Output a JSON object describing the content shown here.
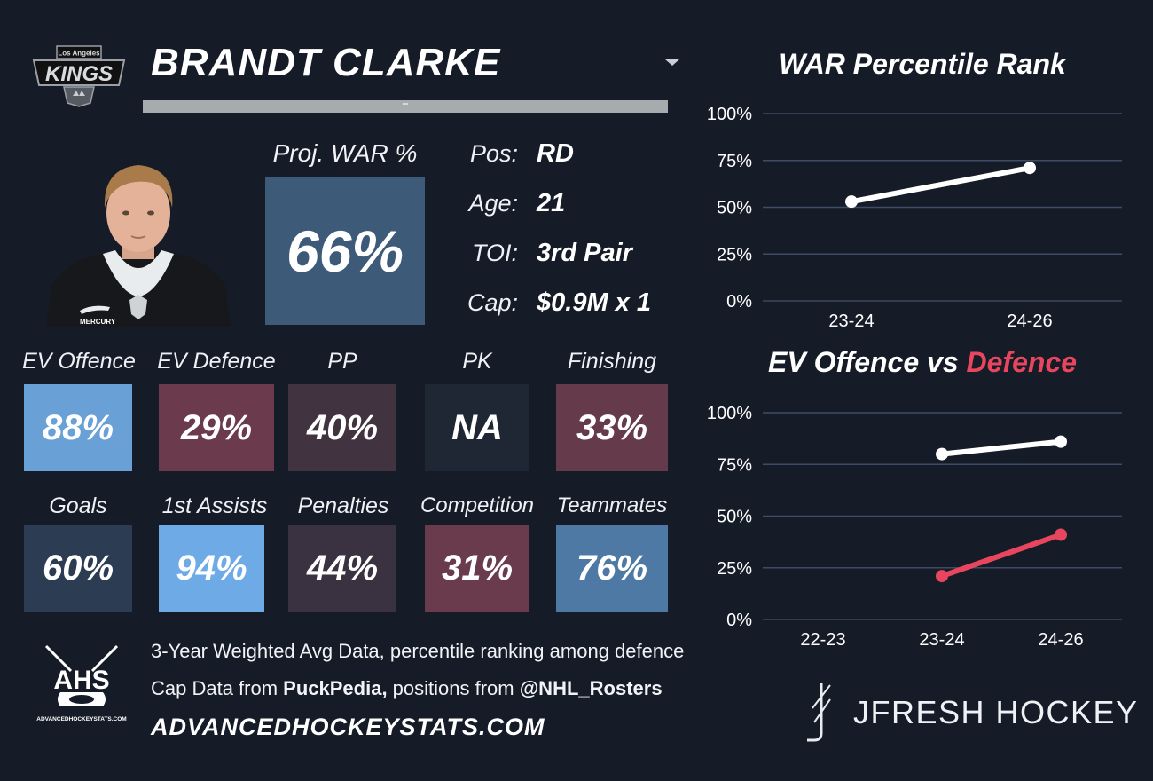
{
  "player": {
    "name": "BRANDT CLARKE",
    "team_logo_text": "KINGS",
    "team_logo_subtext": "Los Angeles",
    "proj_war_label": "Proj. WAR %",
    "proj_war_value": "66%",
    "info": [
      {
        "key": "Pos:",
        "value": "RD"
      },
      {
        "key": "Age:",
        "value": "21"
      },
      {
        "key": "TOI:",
        "value": "3rd Pair"
      },
      {
        "key": "Cap:",
        "value": "$0.9M x 1"
      }
    ],
    "jersey_sponsor": "MERCURY"
  },
  "stats": [
    {
      "label": "EV Offence",
      "value": "88%",
      "color": "#69a0d6"
    },
    {
      "label": "EV Defence",
      "value": "29%",
      "color": "#6b3b4d"
    },
    {
      "label": "PP",
      "value": "40%",
      "color": "#41333f"
    },
    {
      "label": "PK",
      "value": "NA",
      "color": "#1e2733"
    },
    {
      "label": "Finishing",
      "value": "33%",
      "color": "#653b4c"
    },
    {
      "label": "Goals",
      "value": "60%",
      "color": "#2b3c53"
    },
    {
      "label": "1st Assists",
      "value": "94%",
      "color": "#6eaae5"
    },
    {
      "label": "Penalties",
      "value": "44%",
      "color": "#3b3241"
    },
    {
      "label": "Competition",
      "value": "31%",
      "color": "#6a3b4d"
    },
    {
      "label": "Teammates",
      "value": "76%",
      "color": "#4e79a4"
    }
  ],
  "footer": {
    "ahs_logo_text": "AHS",
    "ahs_logo_url_text": "ADVANCEDHOCKEYSTATS.COM",
    "note1": "3-Year Weighted Avg Data, percentile ranking among defence",
    "note2_prefix": "Cap Data from ",
    "note2_source": "PuckPedia,",
    "note2_mid": " positions from ",
    "note2_handle": "@NHL_Rosters",
    "site": "ADVANCEDHOCKEYSTATS.COM",
    "brand": "JFRESH HOCKEY"
  },
  "chart_data": [
    {
      "type": "line",
      "title": "WAR Percentile Rank",
      "categories": [
        "23-24",
        "24-26"
      ],
      "series": [
        {
          "values": [
            53,
            71
          ],
          "color": "#ffffff"
        }
      ],
      "ylim": [
        0,
        100
      ],
      "yticks": [
        "0%",
        "25%",
        "50%",
        "75%",
        "100%"
      ],
      "grid": true
    },
    {
      "type": "line",
      "title_part1": "EV Offence vs ",
      "title_part2": "Defence",
      "title_part2_color": "#e8465e",
      "categories": [
        "22-23",
        "23-24",
        "24-26"
      ],
      "series": [
        {
          "values": [
            null,
            80,
            86
          ],
          "color": "#ffffff"
        },
        {
          "values": [
            null,
            21,
            41
          ],
          "color": "#e8465e"
        }
      ],
      "ylim": [
        0,
        100
      ],
      "yticks": [
        "0%",
        "25%",
        "50%",
        "75%",
        "100%"
      ],
      "grid": true
    }
  ]
}
